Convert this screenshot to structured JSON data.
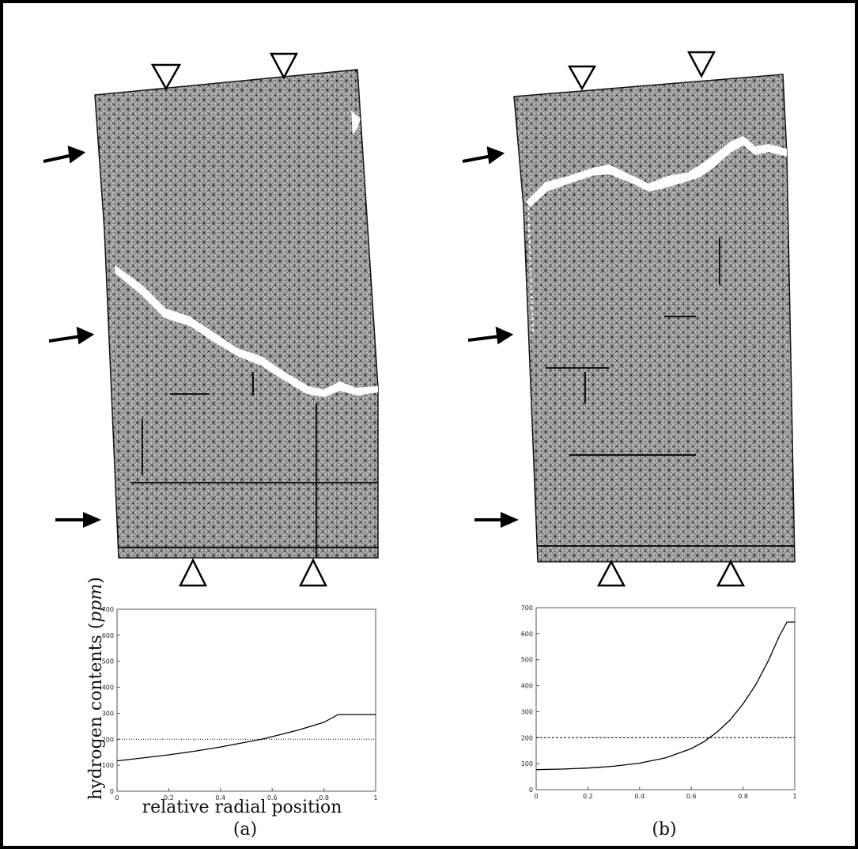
{
  "figure": {
    "ylabel_prefix": "hydrogen contents (",
    "ylabel_unit": "ppm",
    "ylabel_suffix": ")",
    "xlabel": "relative radial position",
    "caption_a": "(a)",
    "caption_b": "(b)"
  },
  "chart_data": [
    {
      "panel": "(a)",
      "type": "line",
      "xlabel": "relative radial position",
      "ylabel": "hydrogen contents (ppm)",
      "xlim": [
        0,
        1
      ],
      "ylim": [
        0,
        700
      ],
      "x_ticks": [
        0,
        0.2,
        0.4,
        0.6,
        0.8,
        1
      ],
      "y_ticks": [
        0,
        100,
        200,
        300,
        400,
        500,
        600,
        700
      ],
      "grid": false,
      "series": [
        {
          "style": "solid",
          "x": [
            0,
            0.1,
            0.2,
            0.3,
            0.4,
            0.5,
            0.56,
            0.6,
            0.7,
            0.8,
            0.855,
            0.9,
            1.0
          ],
          "y": [
            117,
            128,
            140,
            154,
            170,
            189,
            200,
            210,
            235,
            265,
            295,
            295,
            295
          ]
        },
        {
          "style": "dotted",
          "x": [
            0,
            1
          ],
          "y": [
            200,
            200
          ]
        }
      ]
    },
    {
      "panel": "(b)",
      "type": "line",
      "xlim": [
        0,
        1
      ],
      "ylim": [
        0,
        700
      ],
      "x_ticks": [
        0,
        0.2,
        0.4,
        0.6,
        0.8,
        1
      ],
      "y_ticks": [
        0,
        100,
        200,
        300,
        400,
        500,
        600,
        700
      ],
      "grid": false,
      "series": [
        {
          "style": "solid",
          "x": [
            0,
            0.1,
            0.2,
            0.3,
            0.4,
            0.5,
            0.6,
            0.65,
            0.7,
            0.75,
            0.8,
            0.85,
            0.9,
            0.94,
            0.97,
            1.0
          ],
          "y": [
            77,
            79,
            83,
            90,
            102,
            122,
            158,
            185,
            222,
            268,
            330,
            405,
            500,
            590,
            645,
            645
          ]
        },
        {
          "style": "dashed",
          "x": [
            0,
            1
          ],
          "y": [
            200,
            200
          ]
        }
      ]
    }
  ]
}
